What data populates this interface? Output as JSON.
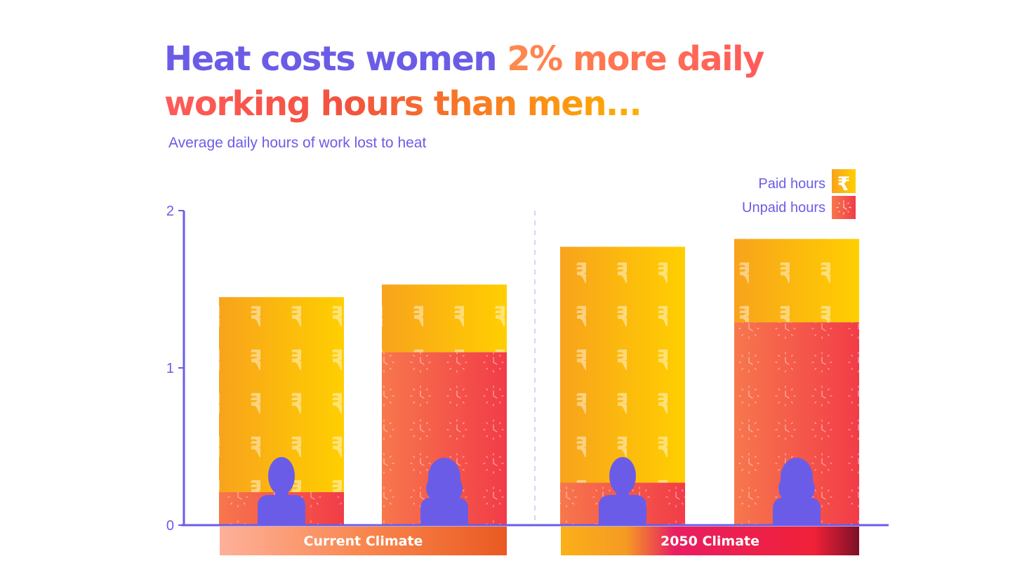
{
  "title": {
    "part1": "Heat costs women ",
    "part2": "2% more daily working hours than men..."
  },
  "subtitle": "Average daily hours of work lost to heat",
  "legend": [
    {
      "label": "Paid hours",
      "icon": "rupee-icon"
    },
    {
      "label": "Unpaid hours",
      "icon": "clock-icon"
    }
  ],
  "colors": {
    "accent": "#6b5ce7",
    "paid_start": "#f8a31c",
    "paid_end": "#ffcf00",
    "unpaid_start": "#f7774c",
    "unpaid_end": "#f23c48"
  },
  "chart_data": {
    "type": "bar",
    "stacked": true,
    "groups": [
      "Current Climate",
      "2050 Climate"
    ],
    "categories": [
      "Men - Current Climate",
      "Women - Current Climate",
      "Men - 2050 Climate",
      "Women - 2050 Climate"
    ],
    "series": [
      {
        "name": "Unpaid hours",
        "values": [
          0.21,
          1.1,
          0.27,
          1.29
        ]
      },
      {
        "name": "Paid hours",
        "values": [
          1.24,
          0.43,
          1.5,
          0.53
        ]
      }
    ],
    "yticks": [
      0,
      1,
      2
    ],
    "ylim": [
      0,
      2
    ]
  }
}
